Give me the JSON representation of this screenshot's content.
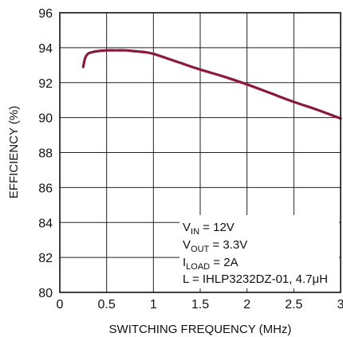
{
  "chart_data": {
    "type": "line",
    "xlabel": "SWITCHING FREQUENCY (MHz)",
    "ylabel": "EFFICIENCY (%)",
    "xlim": [
      0,
      3
    ],
    "ylim": [
      80,
      96
    ],
    "x_ticks": [
      0,
      0.5,
      1,
      1.5,
      2,
      2.5,
      3
    ],
    "x_tick_labels": [
      "0",
      "0.5",
      "1",
      "1.5",
      "2",
      "2.5",
      "3"
    ],
    "y_ticks": [
      80,
      82,
      84,
      86,
      88,
      90,
      92,
      94,
      96
    ],
    "y_tick_labels": [
      "80",
      "82",
      "84",
      "86",
      "88",
      "90",
      "92",
      "94",
      "96"
    ],
    "grid": true,
    "line_color": "#8b1a3a",
    "series": [
      {
        "x": [
          0.25,
          0.27,
          0.3,
          0.35,
          0.4,
          0.5,
          0.6,
          0.7,
          0.8,
          0.9,
          1.0,
          1.25,
          1.5,
          1.75,
          2.0,
          2.25,
          2.5,
          2.75,
          3.0
        ],
        "values": [
          92.9,
          93.4,
          93.65,
          93.75,
          93.8,
          93.85,
          93.85,
          93.85,
          93.8,
          93.75,
          93.65,
          93.2,
          92.75,
          92.35,
          91.9,
          91.4,
          90.9,
          90.45,
          89.95
        ]
      }
    ],
    "annotation": {
      "line1": {
        "main": "V",
        "sub": "IN",
        "rest": " = 12V"
      },
      "line2": {
        "main": "V",
        "sub": "OUT",
        "rest": " = 3.3V"
      },
      "line3": {
        "main": "I",
        "sub": "LOAD",
        "rest": " = 2A"
      },
      "line4": {
        "main": "L = IHLP3232DZ-01, 4.7μH"
      }
    }
  }
}
